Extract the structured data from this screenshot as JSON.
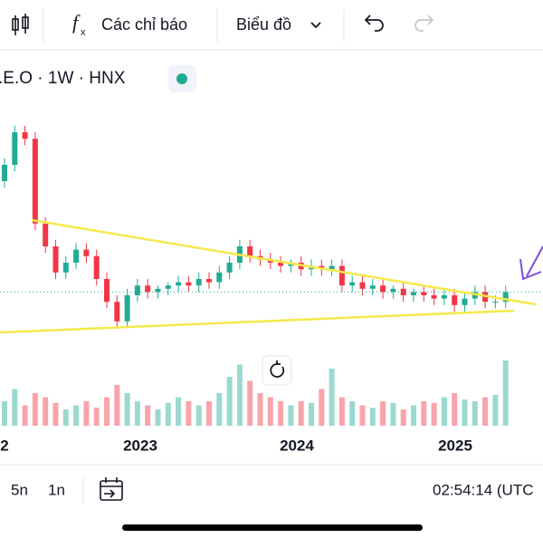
{
  "toolbar": {
    "indicators": "Các chỉ báo",
    "chart_menu": "Biểu đồ"
  },
  "symbol": ".E.O · 1W · HNX",
  "chart_data": {
    "type": "candlestick",
    "x_labels": [
      "2",
      "2023",
      "2024",
      "2025"
    ],
    "open": [
      75,
      80,
      90,
      88,
      62,
      55,
      47,
      50,
      54,
      52,
      45,
      38,
      32,
      40,
      43,
      41,
      42,
      43,
      44,
      43,
      45,
      44,
      47,
      50,
      55,
      52,
      51,
      50,
      49,
      50,
      48,
      49,
      48,
      49,
      43,
      44,
      42,
      43,
      41,
      42,
      40,
      41,
      40,
      39,
      40,
      37,
      39,
      41,
      38,
      38
    ],
    "close": [
      80,
      90,
      88,
      62,
      55,
      47,
      50,
      54,
      52,
      45,
      38,
      32,
      40,
      43,
      41,
      42,
      43,
      44,
      43,
      45,
      44,
      47,
      50,
      55,
      52,
      51,
      50,
      49,
      50,
      48,
      49,
      48,
      49,
      43,
      44,
      42,
      43,
      41,
      42,
      40,
      41,
      40,
      39,
      40,
      37,
      39,
      41,
      38,
      38,
      41
    ],
    "high": [
      82,
      92,
      92,
      90,
      64,
      57,
      52,
      56,
      56,
      54,
      47,
      40,
      42,
      45,
      45,
      43,
      44,
      46,
      46,
      47,
      47,
      49,
      52,
      57,
      57,
      54,
      53,
      52,
      51,
      52,
      51,
      51,
      51,
      51,
      46,
      46,
      45,
      45,
      43,
      44,
      42,
      43,
      42,
      42,
      42,
      41,
      43,
      43,
      40,
      43
    ],
    "low": [
      73,
      78,
      86,
      60,
      53,
      45,
      45,
      48,
      50,
      43,
      36,
      30,
      30,
      38,
      39,
      39,
      40,
      41,
      41,
      41,
      42,
      42,
      45,
      48,
      50,
      49,
      48,
      47,
      47,
      46,
      46,
      46,
      46,
      41,
      41,
      40,
      40,
      39,
      39,
      38,
      38,
      38,
      37,
      37,
      35,
      35,
      37,
      36,
      36,
      36
    ],
    "volume": [
      30,
      45,
      25,
      40,
      35,
      28,
      20,
      25,
      30,
      22,
      35,
      50,
      40,
      30,
      25,
      20,
      28,
      35,
      30,
      25,
      30,
      40,
      60,
      75,
      55,
      40,
      35,
      30,
      25,
      30,
      28,
      45,
      70,
      35,
      30,
      25,
      22,
      30,
      28,
      20,
      25,
      30,
      28,
      35,
      40,
      32,
      30,
      35,
      38,
      80
    ],
    "ylim": [
      0,
      100
    ],
    "volume_lim": [
      0,
      100
    ],
    "up_color": "#22ab94",
    "down_color": "#f23645"
  },
  "footer": {
    "ranges": [
      "5n",
      "1n"
    ],
    "clock": "02:54:14 (UTC"
  }
}
